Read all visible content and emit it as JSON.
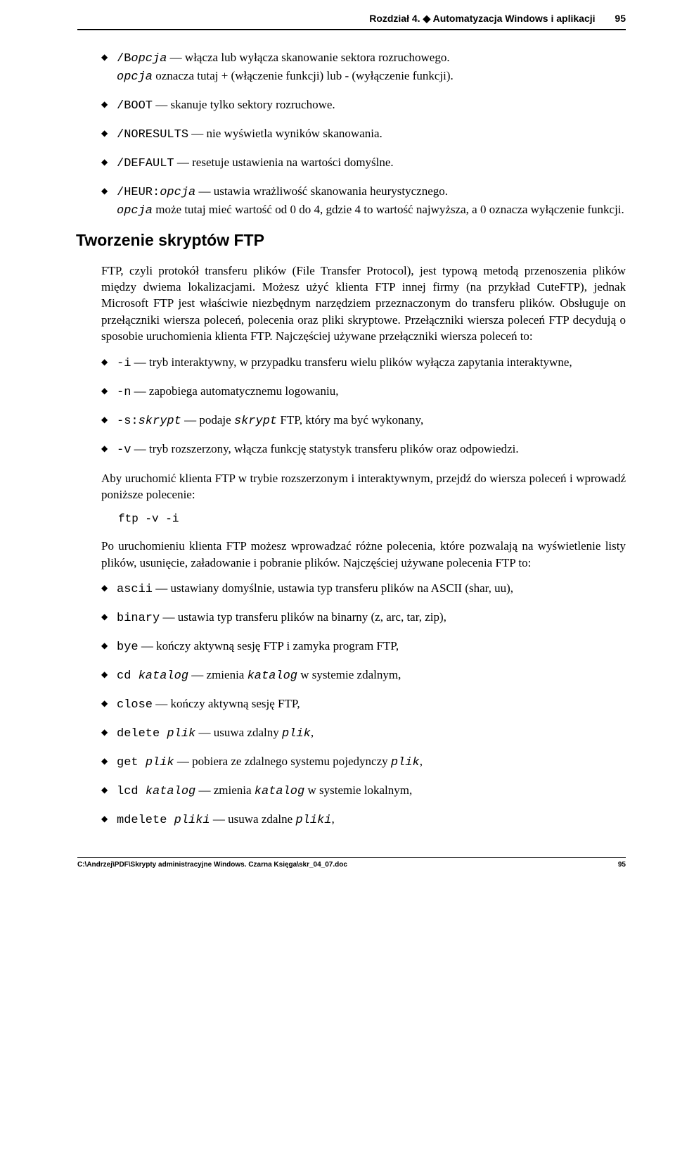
{
  "header": {
    "chapter": "Rozdział 4. ",
    "bullet": "◆",
    "title": " Automatyzacja Windows i aplikacji",
    "pagenum": "95"
  },
  "list1": [
    {
      "cmd": "/B",
      "arg": "opcja",
      "text": " — włącza lub wyłącza skanowanie sektora rozruchowego.",
      "cont_pre": "",
      "cont_arg": "opcja",
      "cont_text": " oznacza tutaj + (włączenie funkcji) lub - (wyłączenie funkcji)."
    },
    {
      "cmd": "/BOOT",
      "arg": "",
      "text": " — skanuje tylko sektory rozruchowe.",
      "cont_pre": "",
      "cont_arg": "",
      "cont_text": ""
    },
    {
      "cmd": "/NORESULTS",
      "arg": "",
      "text": " — nie wyświetla wyników skanowania.",
      "cont_pre": "",
      "cont_arg": "",
      "cont_text": ""
    },
    {
      "cmd": "/DEFAULT",
      "arg": "",
      "text": " — resetuje ustawienia na wartości domyślne.",
      "cont_pre": "",
      "cont_arg": "",
      "cont_text": ""
    },
    {
      "cmd": "/HEUR:",
      "arg": "opcja",
      "text": " — ustawia wrażliwość skanowania heurystycznego.",
      "cont_pre": "",
      "cont_arg": "opcja",
      "cont_text": " może tutaj mieć wartość od 0 do 4, gdzie 4 to wartość najwyższa, a 0 oznacza wyłączenie funkcji."
    }
  ],
  "section_title": "Tworzenie skryptów FTP",
  "para1": "FTP, czyli protokół transferu plików (File Transfer Protocol), jest typową metodą przenoszenia plików między dwiema lokalizacjami. Możesz użyć klienta FTP innej firmy (na przykład CuteFTP), jednak Microsoft FTP jest właściwie niezbędnym narzędziem przeznaczonym do transferu plików. Obsługuje on przełączniki wiersza poleceń, polecenia oraz pliki skryptowe. Przełączniki wiersza poleceń FTP decydują o sposobie uruchomienia klienta FTP. Najczęściej używane przełączniki wiersza poleceń to:",
  "list2": [
    {
      "cmd": "-i",
      "arg": "",
      "text": " — tryb interaktywny, w przypadku transferu wielu plików wyłącza zapytania interaktywne,"
    },
    {
      "cmd": "-n",
      "arg": "",
      "text": " — zapobiega automatycznemu logowaniu,"
    },
    {
      "cmd": "-s:",
      "arg": "skrypt",
      "text_pre": " — podaje ",
      "text_arg": "skrypt",
      "text_post": " FTP, który ma być wykonany,"
    },
    {
      "cmd": "-v",
      "arg": "",
      "text": " — tryb rozszerzony, włącza funkcję statystyk transferu plików oraz odpowiedzi."
    }
  ],
  "para2": "Aby uruchomić klienta FTP w trybie rozszerzonym i interaktywnym, przejdź do wiersza poleceń i wprowadź poniższe polecenie:",
  "cmd_line": "ftp -v -i",
  "para3": "Po uruchomieniu klienta FTP możesz wprowadzać różne polecenia, które pozwalają na wyświetlenie listy plików, usunięcie, załadowanie i pobranie plików. Najczęściej używane polecenia FTP to:",
  "list3": [
    {
      "cmd": "ascii",
      "arg": "",
      "text": " — ustawiany domyślnie, ustawia typ transferu plików na ASCII (shar, uu),"
    },
    {
      "cmd": "binary",
      "arg": "",
      "text": " — ustawia typ transferu plików na binarny (z, arc, tar, zip),"
    },
    {
      "cmd": "bye",
      "arg": "",
      "text": " — kończy aktywną sesję FTP i zamyka program FTP,"
    },
    {
      "cmd": "cd ",
      "arg": "katalog",
      "text_pre": " — zmienia ",
      "text_arg": "katalog",
      "text_post": " w systemie zdalnym,"
    },
    {
      "cmd": "close",
      "arg": "",
      "text": " — kończy aktywną sesję FTP,"
    },
    {
      "cmd": "delete ",
      "arg": "plik",
      "text_pre": " — usuwa zdalny ",
      "text_arg": "plik",
      "text_post": ","
    },
    {
      "cmd": "get ",
      "arg": "plik",
      "text_pre": " — pobiera ze zdalnego systemu pojedynczy ",
      "text_arg": "plik",
      "text_post": ","
    },
    {
      "cmd": "lcd ",
      "arg": "katalog",
      "text_pre": " — zmienia ",
      "text_arg": "katalog",
      "text_post": " w systemie lokalnym,"
    },
    {
      "cmd": "mdelete ",
      "arg": "pliki",
      "text_pre": " — usuwa zdalne ",
      "text_arg": "pliki",
      "text_post": ","
    }
  ],
  "footer": {
    "path": "C:\\Andrzej\\PDF\\Skrypty administracyjne Windows. Czarna Księga\\skr_04_07.doc",
    "pagenum": "95"
  }
}
